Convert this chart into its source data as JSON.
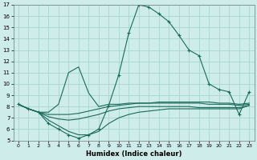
{
  "xlabel": "Humidex (Indice chaleur)",
  "x": [
    0,
    1,
    2,
    3,
    4,
    5,
    6,
    7,
    8,
    9,
    10,
    11,
    12,
    13,
    14,
    15,
    16,
    17,
    18,
    19,
    20,
    21,
    22,
    23
  ],
  "line1": [
    8.2,
    7.8,
    7.5,
    7.3,
    7.3,
    7.3,
    7.4,
    7.6,
    7.8,
    8.0,
    8.1,
    8.2,
    8.3,
    8.3,
    8.3,
    8.3,
    8.3,
    8.3,
    8.3,
    8.2,
    8.2,
    8.2,
    8.1,
    8.2
  ],
  "line2": [
    8.2,
    7.8,
    7.5,
    7.1,
    6.9,
    6.8,
    6.9,
    7.1,
    7.3,
    7.6,
    7.8,
    7.9,
    8.0,
    8.0,
    8.0,
    8.0,
    8.0,
    8.0,
    7.9,
    7.9,
    7.9,
    7.9,
    7.9,
    8.1
  ],
  "line3": [
    8.2,
    7.8,
    7.5,
    7.5,
    8.2,
    11.0,
    11.5,
    9.2,
    8.0,
    8.2,
    8.2,
    8.3,
    8.3,
    8.3,
    8.4,
    8.4,
    8.4,
    8.4,
    8.4,
    8.4,
    8.3,
    8.3,
    8.2,
    8.3
  ],
  "line4": [
    8.2,
    7.8,
    7.5,
    6.8,
    6.3,
    5.8,
    5.5,
    5.5,
    5.8,
    6.5,
    7.0,
    7.3,
    7.5,
    7.6,
    7.7,
    7.8,
    7.8,
    7.8,
    7.8,
    7.8,
    7.8,
    7.8,
    7.8,
    8.1
  ],
  "line5": [
    8.2,
    7.8,
    7.5,
    6.5,
    6.0,
    5.5,
    5.2,
    5.5,
    6.0,
    8.1,
    10.8,
    14.5,
    17.0,
    16.8,
    16.2,
    15.5,
    14.3,
    13.0,
    12.5,
    10.0,
    9.5,
    9.3,
    7.3,
    9.3
  ],
  "bg_color": "#ceecea",
  "grid_color": "#a8d5d3",
  "line_color": "#1a6b5a",
  "ylim": [
    5,
    17
  ],
  "yticks": [
    5,
    6,
    7,
    8,
    9,
    10,
    11,
    12,
    13,
    14,
    15,
    16,
    17
  ],
  "xticks": [
    0,
    1,
    2,
    3,
    4,
    5,
    6,
    7,
    8,
    9,
    10,
    11,
    12,
    13,
    14,
    15,
    16,
    17,
    18,
    19,
    20,
    21,
    22,
    23
  ],
  "marker": "+"
}
